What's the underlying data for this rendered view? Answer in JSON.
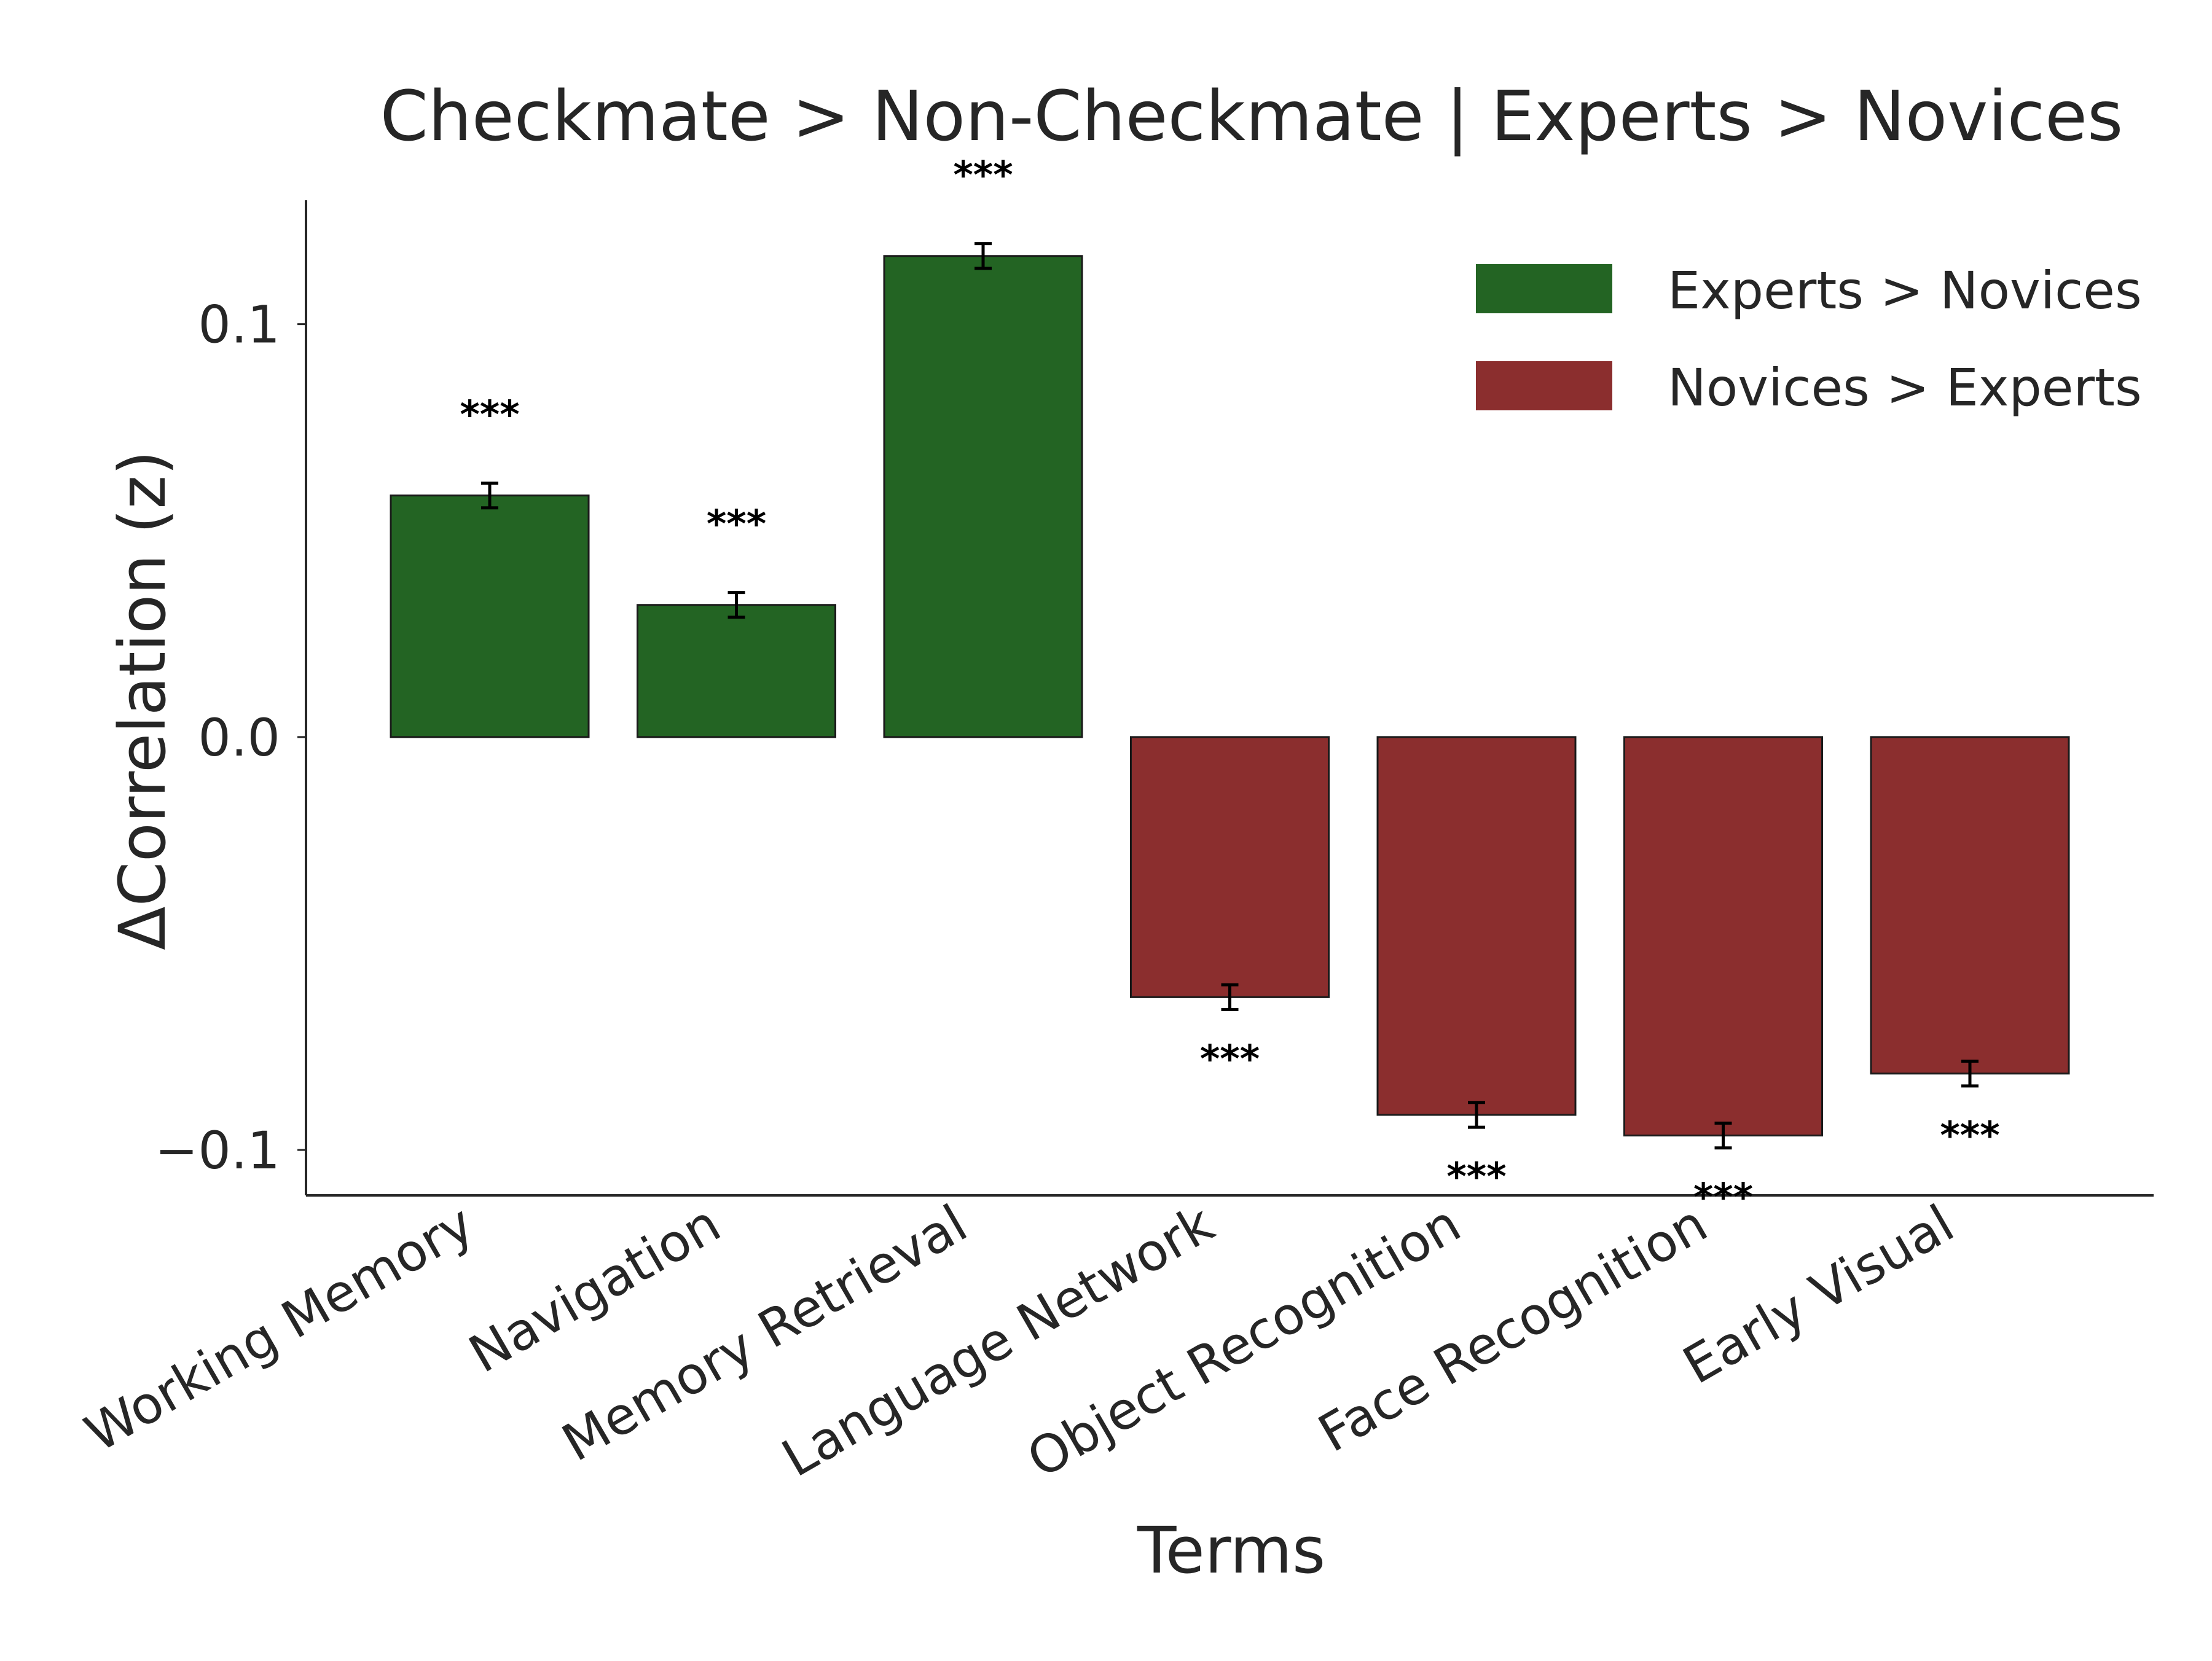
{
  "chart_data": {
    "type": "bar",
    "title": "Checkmate > Non-Checkmate | Experts > Novices",
    "xlabel": "Terms",
    "ylabel": "ΔCorrelation (z)",
    "ylim": [
      -0.111,
      0.13
    ],
    "yticks": [
      {
        "value": 0.1,
        "label": "0.1"
      },
      {
        "value": 0.0,
        "label": "0.0"
      },
      {
        "value": -0.1,
        "label": "−0.1"
      }
    ],
    "grid": false,
    "legend_position": "top-right",
    "categories": [
      "Working Memory",
      "Navigation",
      "Memory Retrieval",
      "Language Network",
      "Object Recognition",
      "Face Recognition",
      "Early Visual"
    ],
    "series": [
      {
        "name": "Experts > Novices",
        "color": "#236423",
        "values": [
          0.0585,
          0.032,
          0.1165,
          null,
          null,
          null,
          null
        ],
        "errors": [
          0.003,
          0.003,
          0.003,
          null,
          null,
          null,
          null
        ],
        "significance": [
          "***",
          "***",
          "***",
          null,
          null,
          null,
          null
        ]
      },
      {
        "name": "Novices > Experts",
        "color": "#8b2e2e",
        "values": [
          null,
          null,
          null,
          -0.063,
          -0.0915,
          -0.0965,
          -0.0815
        ],
        "errors": [
          null,
          null,
          null,
          0.003,
          0.003,
          0.003,
          0.003
        ],
        "significance": [
          null,
          null,
          null,
          "***",
          "***",
          "***",
          "***"
        ]
      }
    ]
  }
}
